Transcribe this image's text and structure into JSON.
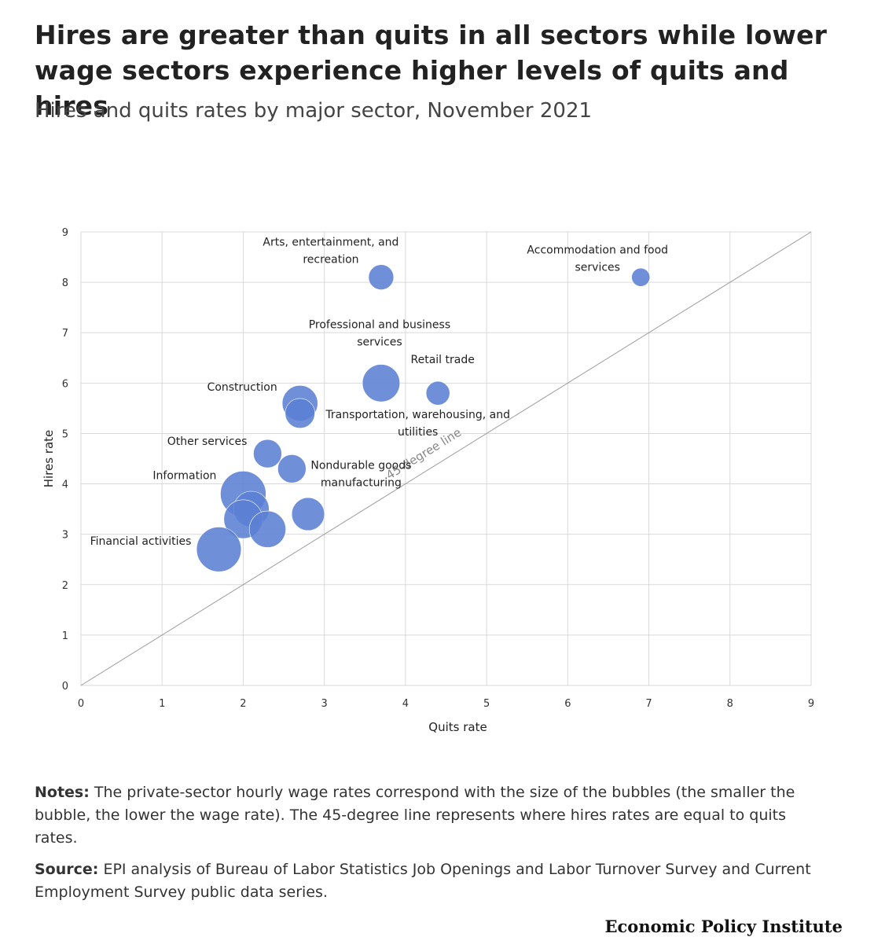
{
  "title": "Hires are greater than quits in all sectors while lower wage sectors experience higher levels of quits and hires",
  "subtitle": "Hires and quits rates by major sector, November 2021",
  "notes": {
    "label": "Notes:",
    "text": "The private-sector hourly wage rates correspond with the size of the bubbles (the smaller the bubble, the lower the wage rate). The 45-degree line represents where hires rates are equal to quits rates."
  },
  "source": {
    "label": "Source:",
    "text": "EPI analysis of Bureau of Labor Statistics Job Openings and Labor Turnover Survey and Current Employment Survey public data series."
  },
  "brand": "Economic Policy Institute",
  "chart_data": {
    "type": "scatter",
    "subtype": "bubble",
    "title": "Hires and quits rates by major sector, November 2021",
    "xlabel": "Quits rate",
    "ylabel": "Hires rate",
    "xlim": [
      0,
      9
    ],
    "ylim": [
      0,
      9
    ],
    "xticks": [
      "0",
      "1",
      "2",
      "3",
      "4",
      "5",
      "6",
      "7",
      "8",
      "9"
    ],
    "yticks": [
      "0",
      "1",
      "2",
      "3",
      "4",
      "5",
      "6",
      "7",
      "8",
      "9"
    ],
    "grid": true,
    "bubble_color": "#5b7fd4",
    "reference_line": {
      "label": "45-degree line",
      "from": [
        0,
        0
      ],
      "to": [
        9,
        9
      ]
    },
    "points": [
      {
        "quits": 3.7,
        "hires": 8.1,
        "wage_scale": 0.55,
        "label": [
          "Arts, entertainment, and",
          "recreation"
        ]
      },
      {
        "quits": 6.9,
        "hires": 8.1,
        "wage_scale": 0.4,
        "label": [
          "Accommodation and food",
          "services"
        ]
      },
      {
        "quits": 3.7,
        "hires": 6.0,
        "wage_scale": 0.82,
        "label": [
          "Professional and business",
          "services"
        ]
      },
      {
        "quits": 4.4,
        "hires": 5.8,
        "wage_scale": 0.52,
        "label": [
          "Retail trade"
        ]
      },
      {
        "quits": 2.7,
        "hires": 5.6,
        "wage_scale": 0.78,
        "label": [
          "Construction"
        ]
      },
      {
        "quits": 2.7,
        "hires": 5.4,
        "wage_scale": 0.65,
        "label": [
          "Transportation, warehousing, and",
          "utilities"
        ]
      },
      {
        "quits": 2.3,
        "hires": 4.6,
        "wage_scale": 0.62,
        "label": [
          "Other services"
        ]
      },
      {
        "quits": 2.6,
        "hires": 4.3,
        "wage_scale": 0.62,
        "label": [
          "Nondurable goods",
          "manufacturing"
        ]
      },
      {
        "quits": 2.0,
        "hires": 3.8,
        "wage_scale": 1.0,
        "label": [
          "Information"
        ]
      },
      {
        "quits": 2.1,
        "hires": 3.5,
        "wage_scale": 0.78,
        "label": []
      },
      {
        "quits": 2.0,
        "hires": 3.3,
        "wage_scale": 0.85,
        "label": []
      },
      {
        "quits": 2.3,
        "hires": 3.1,
        "wage_scale": 0.8,
        "label": []
      },
      {
        "quits": 2.8,
        "hires": 3.4,
        "wage_scale": 0.72,
        "label": []
      },
      {
        "quits": 1.7,
        "hires": 2.7,
        "wage_scale": 0.98,
        "label": [
          "Financial activities"
        ]
      }
    ]
  }
}
